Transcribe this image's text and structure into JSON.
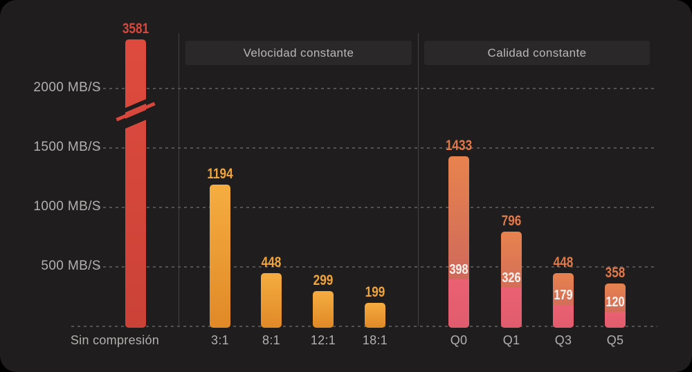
{
  "chart_data": {
    "type": "bar",
    "unit": "MB/S",
    "y_ticks": [
      {
        "value": 2000,
        "label": "2000 MB/S"
      },
      {
        "value": 1500,
        "label": "1500 MB/S"
      },
      {
        "value": 1000,
        "label": "1000 MB/S"
      },
      {
        "value": 500,
        "label": "500 MB/S"
      }
    ],
    "axis_break": {
      "on_category": "Sin compresión",
      "between": [
        1750,
        2000
      ]
    },
    "grid": "dashed horizontal lines at each y tick plus baseline",
    "legend_position": "none",
    "groups": [
      {
        "name": "",
        "style": "red",
        "bars": [
          {
            "category": "Sin compresión",
            "value": 3581,
            "broken": true
          }
        ]
      },
      {
        "name": "Velocidad constante",
        "style": "amber",
        "bars": [
          {
            "category": "3:1",
            "value": 1194
          },
          {
            "category": "8:1",
            "value": 448
          },
          {
            "category": "12:1",
            "value": 299
          },
          {
            "category": "18:1",
            "value": 199
          }
        ]
      },
      {
        "name": "Calidad constante",
        "style": "sunset",
        "bars": [
          {
            "category": "Q0",
            "value": 1433,
            "sub_value": 398
          },
          {
            "category": "Q1",
            "value": 796,
            "sub_value": 326
          },
          {
            "category": "Q3",
            "value": 448,
            "sub_value": 179
          },
          {
            "category": "Q5",
            "value": 358,
            "sub_value": 120
          }
        ]
      }
    ]
  },
  "colors": {
    "background": "#1f1d1d",
    "header_bg": "#2a2828",
    "header_text": "#bab7b7",
    "axis_text": "#b3b0b0",
    "grid": "#555252",
    "divider": "#454242",
    "red_bar_top": "#de4b3e",
    "red_bar_bottom": "#cb4237",
    "red_label": "#d8473b",
    "amber_bar_top": "#f5ad40",
    "amber_bar_bottom": "#e08927",
    "amber_label": "#f0a43c",
    "sunset_bar_top": "#e8834e",
    "sunset_bar_bottom": "#c45f61",
    "sunset_sub_top": "#ea6173",
    "sunset_sub_bottom": "#e05c6d",
    "sunset_label": "#e0794a",
    "sub_label": "#f7f2ef"
  }
}
